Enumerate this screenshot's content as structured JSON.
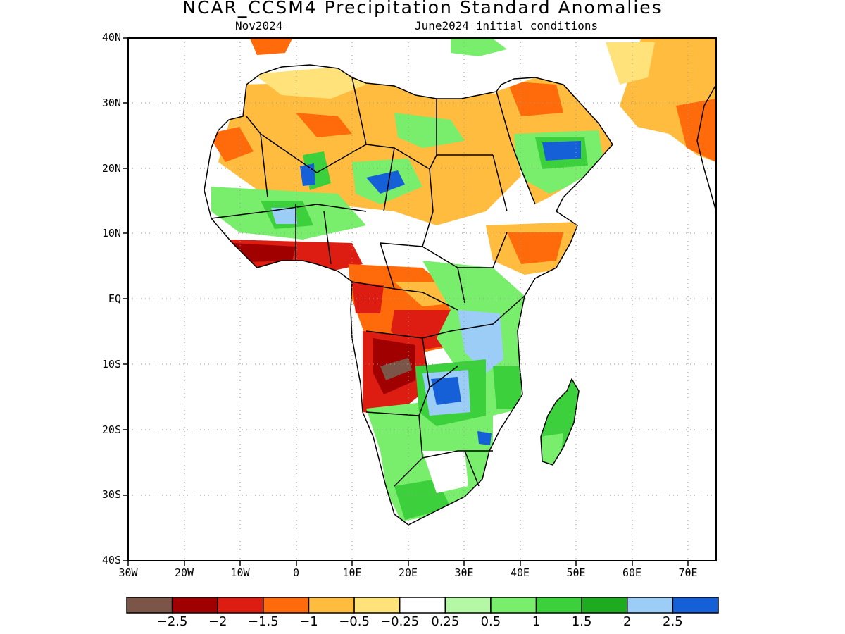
{
  "title": "NCAR_CCSM4 Precipitation Standard Anomalies",
  "subtitle_left": "Nov2024",
  "subtitle_right": "June2024 initial conditions",
  "axes": {
    "y_labels": [
      "40N",
      "30N",
      "20N",
      "10N",
      "EQ",
      "10S",
      "20S",
      "30S",
      "40S"
    ],
    "x_labels": [
      "30W",
      "20W",
      "10W",
      "0",
      "10E",
      "20E",
      "30E",
      "40E",
      "50E",
      "60E",
      "70E"
    ],
    "grid": "dotted"
  },
  "colorbar": {
    "colors": [
      "#7a5548",
      "#a00000",
      "#dd1c12",
      "#ff6a0a",
      "#ffbc3f",
      "#ffe27a",
      "#ffffff",
      "#b4f7a5",
      "#78ee6c",
      "#3cd03c",
      "#1fab1f",
      "#9ccdf7",
      "#1560d6"
    ],
    "labels": [
      "−2.5",
      "−2",
      "−1.5",
      "−1",
      "−0.5",
      "−0.25",
      "0.25",
      "0.5",
      "1",
      "1.5",
      "2",
      "2.5"
    ]
  }
}
